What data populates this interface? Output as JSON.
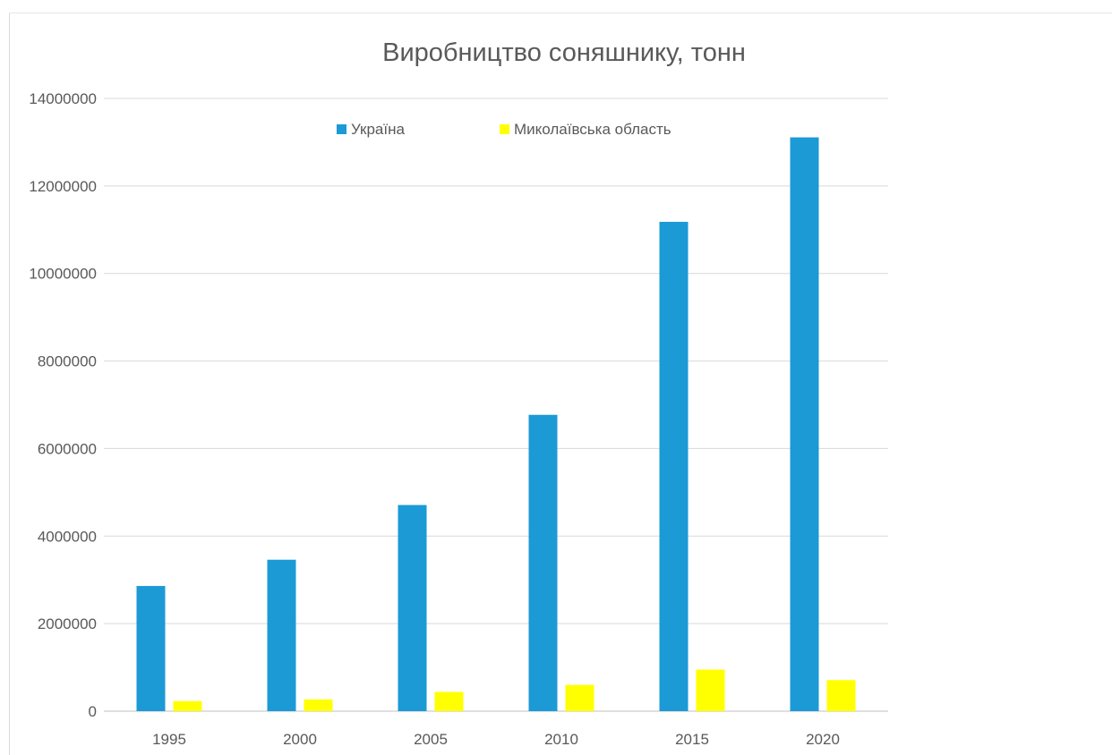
{
  "chart_data": {
    "type": "bar",
    "title": "Виробництво соняшнику, тонн",
    "xlabel": "",
    "ylabel": "",
    "categories": [
      "1995",
      "2000",
      "2005",
      "2010",
      "2015",
      "2020"
    ],
    "ylim": [
      0,
      14000000
    ],
    "yticks": [
      0,
      2000000,
      4000000,
      6000000,
      8000000,
      10000000,
      12000000,
      14000000
    ],
    "ytick_labels": [
      "0",
      "2000000",
      "4000000",
      "6000000",
      "8000000",
      "10000000",
      "12000000",
      "14000000"
    ],
    "grid": true,
    "legend_position": "top-center",
    "series": [
      {
        "name": "Україна",
        "color": "#1b9ad6",
        "values": [
          2860000,
          3460000,
          4710000,
          6770000,
          11180000,
          13110000
        ]
      },
      {
        "name": "Миколаївська область",
        "color": "#ffff00",
        "values": [
          230000,
          270000,
          440000,
          600000,
          950000,
          710000
        ]
      }
    ]
  }
}
